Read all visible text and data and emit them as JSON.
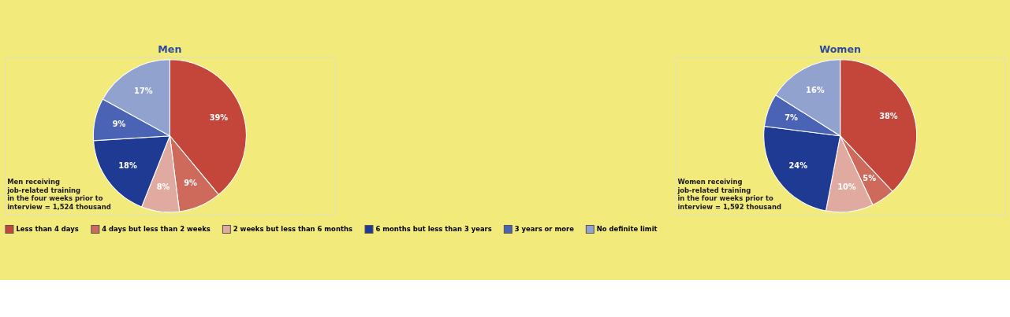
{
  "chart_data": [
    {
      "type": "pie",
      "title": "Men",
      "categories": [
        "Less than 4 days",
        "4 days but less than 2 weeks",
        "2 weeks but less than 6 months",
        "6 months but less than 3 years",
        "3 years or more",
        "No definite limit"
      ],
      "values": [
        39,
        9,
        8,
        18,
        9,
        17
      ],
      "value_labels": [
        "39%",
        "9%",
        "8%",
        "18%",
        "9%",
        "17%"
      ],
      "colors": [
        "#c4463a",
        "#cd6a5c",
        "#e0aaa0",
        "#1f3a93",
        "#4a63b5",
        "#91a2cf"
      ],
      "legend": "bottom",
      "annotations": [
        "Men receiving\njob-related training\nin the four weeks prior to\ninterview = 1,524 thousand"
      ]
    },
    {
      "type": "pie",
      "title": "Women",
      "categories": [
        null,
        null,
        null,
        null,
        null,
        null
      ],
      "values": [
        38,
        5,
        10,
        24,
        7,
        16
      ],
      "value_labels": [
        "38%",
        "5%",
        "10%",
        "24%",
        "7%",
        "16%"
      ],
      "colors": [
        "#c4463a",
        "#cd6a5c",
        "#e0aaa0",
        "#1f3a93",
        "#4a63b5",
        "#91a2cf"
      ],
      "annotations": [
        "Women receiving\njob-related training\nin the four weeks prior to\ninterview = 1,592 thousand"
      ]
    }
  ]
}
